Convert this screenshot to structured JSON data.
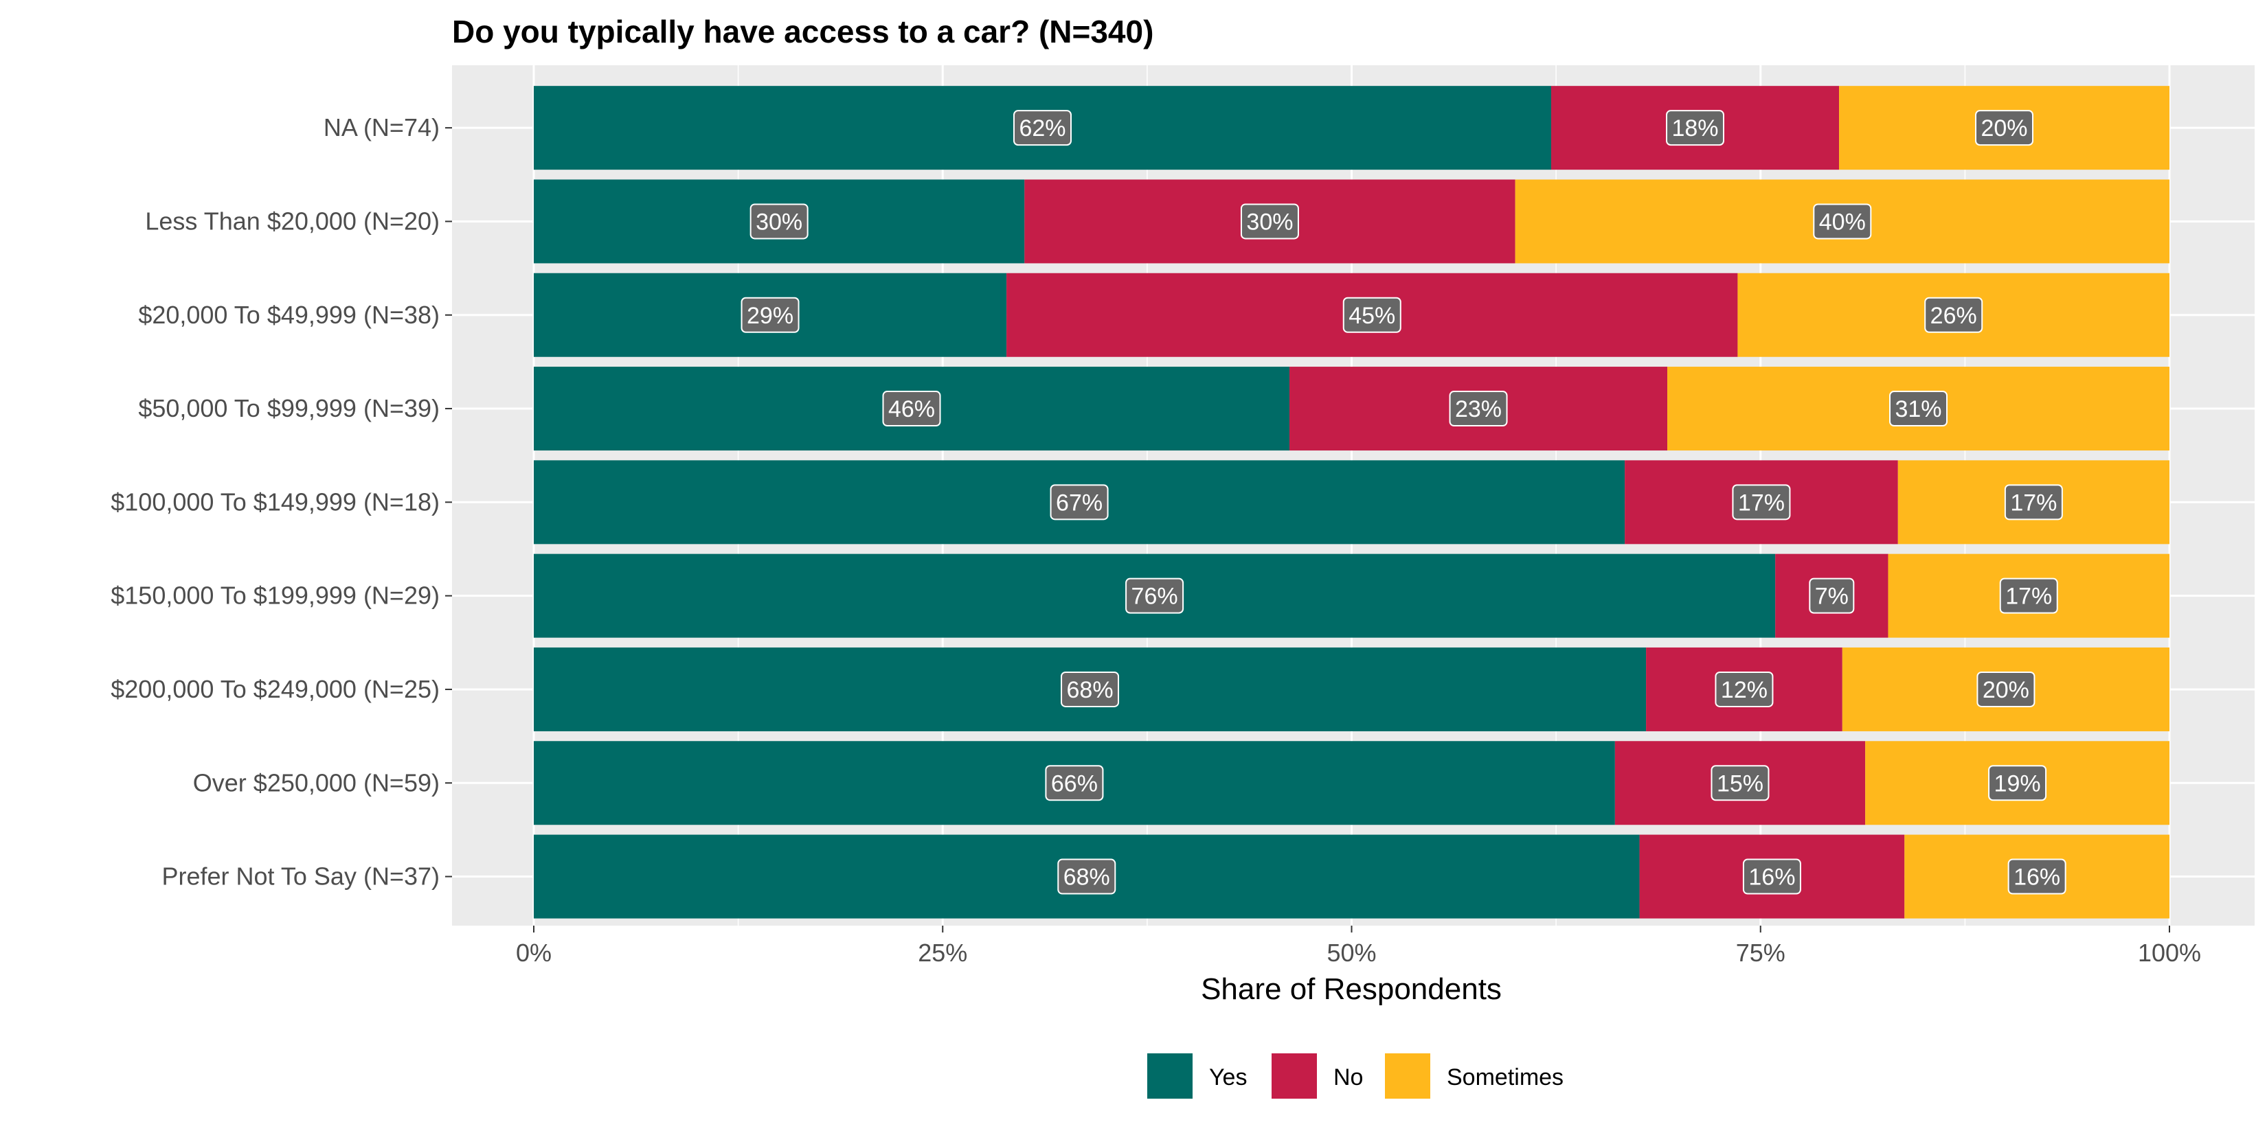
{
  "chart_data": {
    "type": "bar",
    "orientation": "horizontal",
    "stacked": true,
    "title": "Do you typically have access to a car? (N=340)",
    "xlabel": "Share of Respondents",
    "ylabel": "",
    "xlim": [
      0,
      1
    ],
    "x_ticks": [
      "0%",
      "25%",
      "50%",
      "75%",
      "100%"
    ],
    "categories": [
      "NA (N=74)",
      "Less Than $20,000 (N=20)",
      "$20,000 To $49,999 (N=38)",
      "$50,000 To $99,999 (N=39)",
      "$100,000 To $149,999 (N=18)",
      "$150,000 To $199,999 (N=29)",
      "$200,000 To $249,000 (N=25)",
      "Over $250,000 (N=59)",
      "Prefer Not To Say (N=37)"
    ],
    "series": [
      {
        "name": "Yes",
        "color": "#006b66",
        "values": [
          0.622,
          0.3,
          0.289,
          0.462,
          0.667,
          0.759,
          0.68,
          0.661,
          0.676
        ],
        "labels": [
          "62%",
          "30%",
          "29%",
          "46%",
          "67%",
          "76%",
          "68%",
          "66%",
          "68%"
        ]
      },
      {
        "name": "No",
        "color": "#c51d48",
        "values": [
          0.176,
          0.3,
          0.447,
          0.231,
          0.167,
          0.069,
          0.12,
          0.153,
          0.162
        ],
        "labels": [
          "18%",
          "30%",
          "45%",
          "23%",
          "17%",
          "7%",
          "12%",
          "15%",
          "16%"
        ]
      },
      {
        "name": "Sometimes",
        "color": "#ffb81c",
        "values": [
          0.202,
          0.4,
          0.264,
          0.307,
          0.166,
          0.172,
          0.2,
          0.186,
          0.162
        ],
        "labels": [
          "20%",
          "40%",
          "26%",
          "31%",
          "17%",
          "17%",
          "20%",
          "19%",
          "16%"
        ]
      }
    ],
    "grid": true,
    "legend_position": "bottom",
    "panel_background": "#ebebeb",
    "label_box_color": "#666666"
  }
}
